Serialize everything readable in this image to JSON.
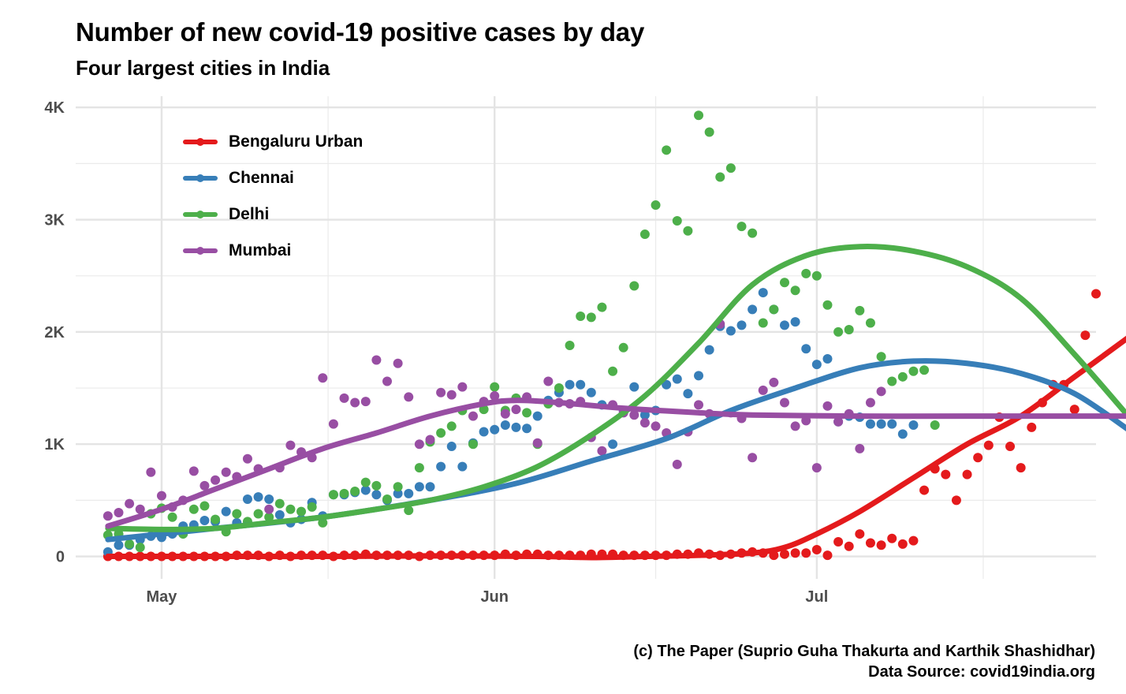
{
  "chart_data": {
    "type": "scatter",
    "title": "Number of new covid-19 positive cases by day",
    "subtitle": "Four largest cities in India",
    "caption_lines": [
      "(c) The Paper (Suprio Guha Thakurta and Karthik Shashidhar)",
      "Data Source: covid19india.org"
    ],
    "xlabel": "",
    "ylabel": "",
    "x_start_date": "2020-04-26",
    "x_tick_labels": [
      {
        "label": "May",
        "date": "2020-05-01"
      },
      {
        "label": "Jun",
        "date": "2020-06-01"
      },
      {
        "label": "Jul",
        "date": "2020-07-01"
      }
    ],
    "y_tick_labels": [
      {
        "label": "0",
        "value": 0
      },
      {
        "label": "1K",
        "value": 1000
      },
      {
        "label": "2K",
        "value": 2000
      },
      {
        "label": "3K",
        "value": 3000
      },
      {
        "label": "4K",
        "value": 4000
      }
    ],
    "xlim": [
      "2020-04-23",
      "2020-07-27"
    ],
    "ylim": [
      -200,
      4100
    ],
    "grid": true,
    "legend_position": "top-left",
    "series": [
      {
        "name": "Bengaluru Urban",
        "color": "#e41a1c",
        "points": [
          0,
          0,
          0,
          0,
          0,
          0,
          0,
          0,
          0,
          0,
          0,
          0,
          10,
          10,
          10,
          0,
          10,
          0,
          10,
          10,
          10,
          0,
          10,
          10,
          20,
          10,
          10,
          10,
          10,
          0,
          10,
          10,
          10,
          10,
          10,
          10,
          10,
          20,
          10,
          20,
          20,
          10,
          10,
          10,
          10,
          20,
          20,
          20,
          10,
          10,
          10,
          10,
          10,
          20,
          20,
          30,
          20,
          10,
          20,
          30,
          40,
          30,
          10,
          20,
          30,
          30,
          60,
          10,
          130,
          90,
          200,
          120,
          100,
          160,
          110,
          140,
          590,
          780,
          730,
          500,
          730,
          880,
          990,
          1240,
          980,
          790,
          1150,
          1370,
          1530,
          1530,
          1310,
          1970,
          2340
        ],
        "trend": [
          [
            0,
            0
          ],
          [
            10,
            0
          ],
          [
            20,
            0
          ],
          [
            30,
            5
          ],
          [
            40,
            0
          ],
          [
            45,
            -10
          ],
          [
            50,
            0
          ],
          [
            55,
            10
          ],
          [
            60,
            30
          ],
          [
            63,
            80
          ],
          [
            66,
            200
          ],
          [
            70,
            400
          ],
          [
            75,
            700
          ],
          [
            80,
            1000
          ],
          [
            85,
            1250
          ],
          [
            90,
            1600
          ],
          [
            95,
            1950
          ]
        ]
      },
      {
        "name": "Chennai",
        "color": "#377eb8",
        "points": [
          40,
          100,
          100,
          150,
          180,
          170,
          200,
          270,
          280,
          320,
          310,
          400,
          300,
          510,
          530,
          510,
          370,
          300,
          330,
          480,
          360,
          550,
          550,
          570,
          590,
          550,
          500,
          560,
          560,
          620,
          620,
          800,
          980,
          800,
          1010,
          1110,
          1130,
          1170,
          1150,
          1140,
          1250,
          1390,
          1460,
          1530,
          1530,
          1460,
          1350,
          1000,
          1300,
          1510,
          1260,
          1300,
          1530,
          1580,
          1450,
          1610,
          1840,
          2050,
          2010,
          2060,
          2200,
          2350,
          2200,
          2060,
          2090,
          1850,
          1710,
          1760,
          1200,
          1250,
          1240,
          1180,
          1180,
          1180,
          1090,
          1170
        ],
        "trend": [
          [
            0,
            150
          ],
          [
            10,
            250
          ],
          [
            20,
            350
          ],
          [
            30,
            500
          ],
          [
            38,
            650
          ],
          [
            45,
            850
          ],
          [
            52,
            1050
          ],
          [
            58,
            1300
          ],
          [
            64,
            1500
          ],
          [
            70,
            1680
          ],
          [
            75,
            1740
          ],
          [
            80,
            1720
          ],
          [
            85,
            1630
          ],
          [
            90,
            1450
          ],
          [
            95,
            1130
          ]
        ]
      },
      {
        "name": "Delhi",
        "color": "#4daf4a",
        "points": [
          190,
          200,
          110,
          80,
          380,
          430,
          350,
          200,
          420,
          450,
          330,
          220,
          380,
          310,
          380,
          350,
          470,
          420,
          400,
          440,
          300,
          550,
          560,
          580,
          660,
          630,
          510,
          620,
          410,
          790,
          1020,
          1100,
          1160,
          1300,
          1000,
          1310,
          1510,
          1300,
          1410,
          1280,
          1000,
          1360,
          1500,
          1880,
          2140,
          2130,
          2220,
          1650,
          1860,
          2410,
          2870,
          3130,
          3620,
          2990,
          2900,
          3930,
          3780,
          3380,
          3460,
          2940,
          2880,
          2080,
          2200,
          2440,
          2370,
          2520,
          2500,
          2240,
          2000,
          2020,
          2190,
          2080,
          1780,
          1560,
          1600,
          1650,
          1660,
          1170
        ],
        "trend": [
          [
            0,
            250
          ],
          [
            5,
            240
          ],
          [
            10,
            250
          ],
          [
            15,
            300
          ],
          [
            20,
            350
          ],
          [
            25,
            420
          ],
          [
            30,
            500
          ],
          [
            35,
            620
          ],
          [
            40,
            800
          ],
          [
            45,
            1080
          ],
          [
            50,
            1430
          ],
          [
            55,
            1900
          ],
          [
            60,
            2420
          ],
          [
            65,
            2680
          ],
          [
            70,
            2760
          ],
          [
            75,
            2720
          ],
          [
            80,
            2580
          ],
          [
            85,
            2300
          ],
          [
            90,
            1800
          ],
          [
            95,
            1250
          ]
        ]
      },
      {
        "name": "Mumbai",
        "color": "#984ea3",
        "points": [
          360,
          390,
          470,
          420,
          750,
          540,
          440,
          500,
          760,
          630,
          680,
          750,
          710,
          870,
          780,
          420,
          790,
          990,
          930,
          880,
          1590,
          1180,
          1410,
          1370,
          1380,
          1750,
          1560,
          1720,
          1420,
          1000,
          1040,
          1460,
          1440,
          1510,
          1250,
          1380,
          1430,
          1270,
          1310,
          1420,
          1010,
          1560,
          1370,
          1360,
          1380,
          1060,
          940,
          1350,
          1280,
          1260,
          1190,
          1160,
          1100,
          820,
          1110,
          1350,
          1270,
          2070,
          1280,
          1230,
          880,
          1480,
          1550,
          1370,
          1160,
          1210,
          790,
          1340,
          1200,
          1270,
          960,
          1370,
          1470
        ],
        "trend": [
          [
            0,
            270
          ],
          [
            5,
            420
          ],
          [
            10,
            600
          ],
          [
            15,
            780
          ],
          [
            20,
            960
          ],
          [
            25,
            1100
          ],
          [
            30,
            1250
          ],
          [
            35,
            1360
          ],
          [
            38,
            1390
          ],
          [
            42,
            1370
          ],
          [
            48,
            1320
          ],
          [
            55,
            1280
          ],
          [
            60,
            1260
          ],
          [
            70,
            1250
          ],
          [
            80,
            1250
          ],
          [
            95,
            1250
          ]
        ]
      }
    ]
  },
  "chart_data_note_x_units": "x values in points/trend are days since x_start_date"
}
